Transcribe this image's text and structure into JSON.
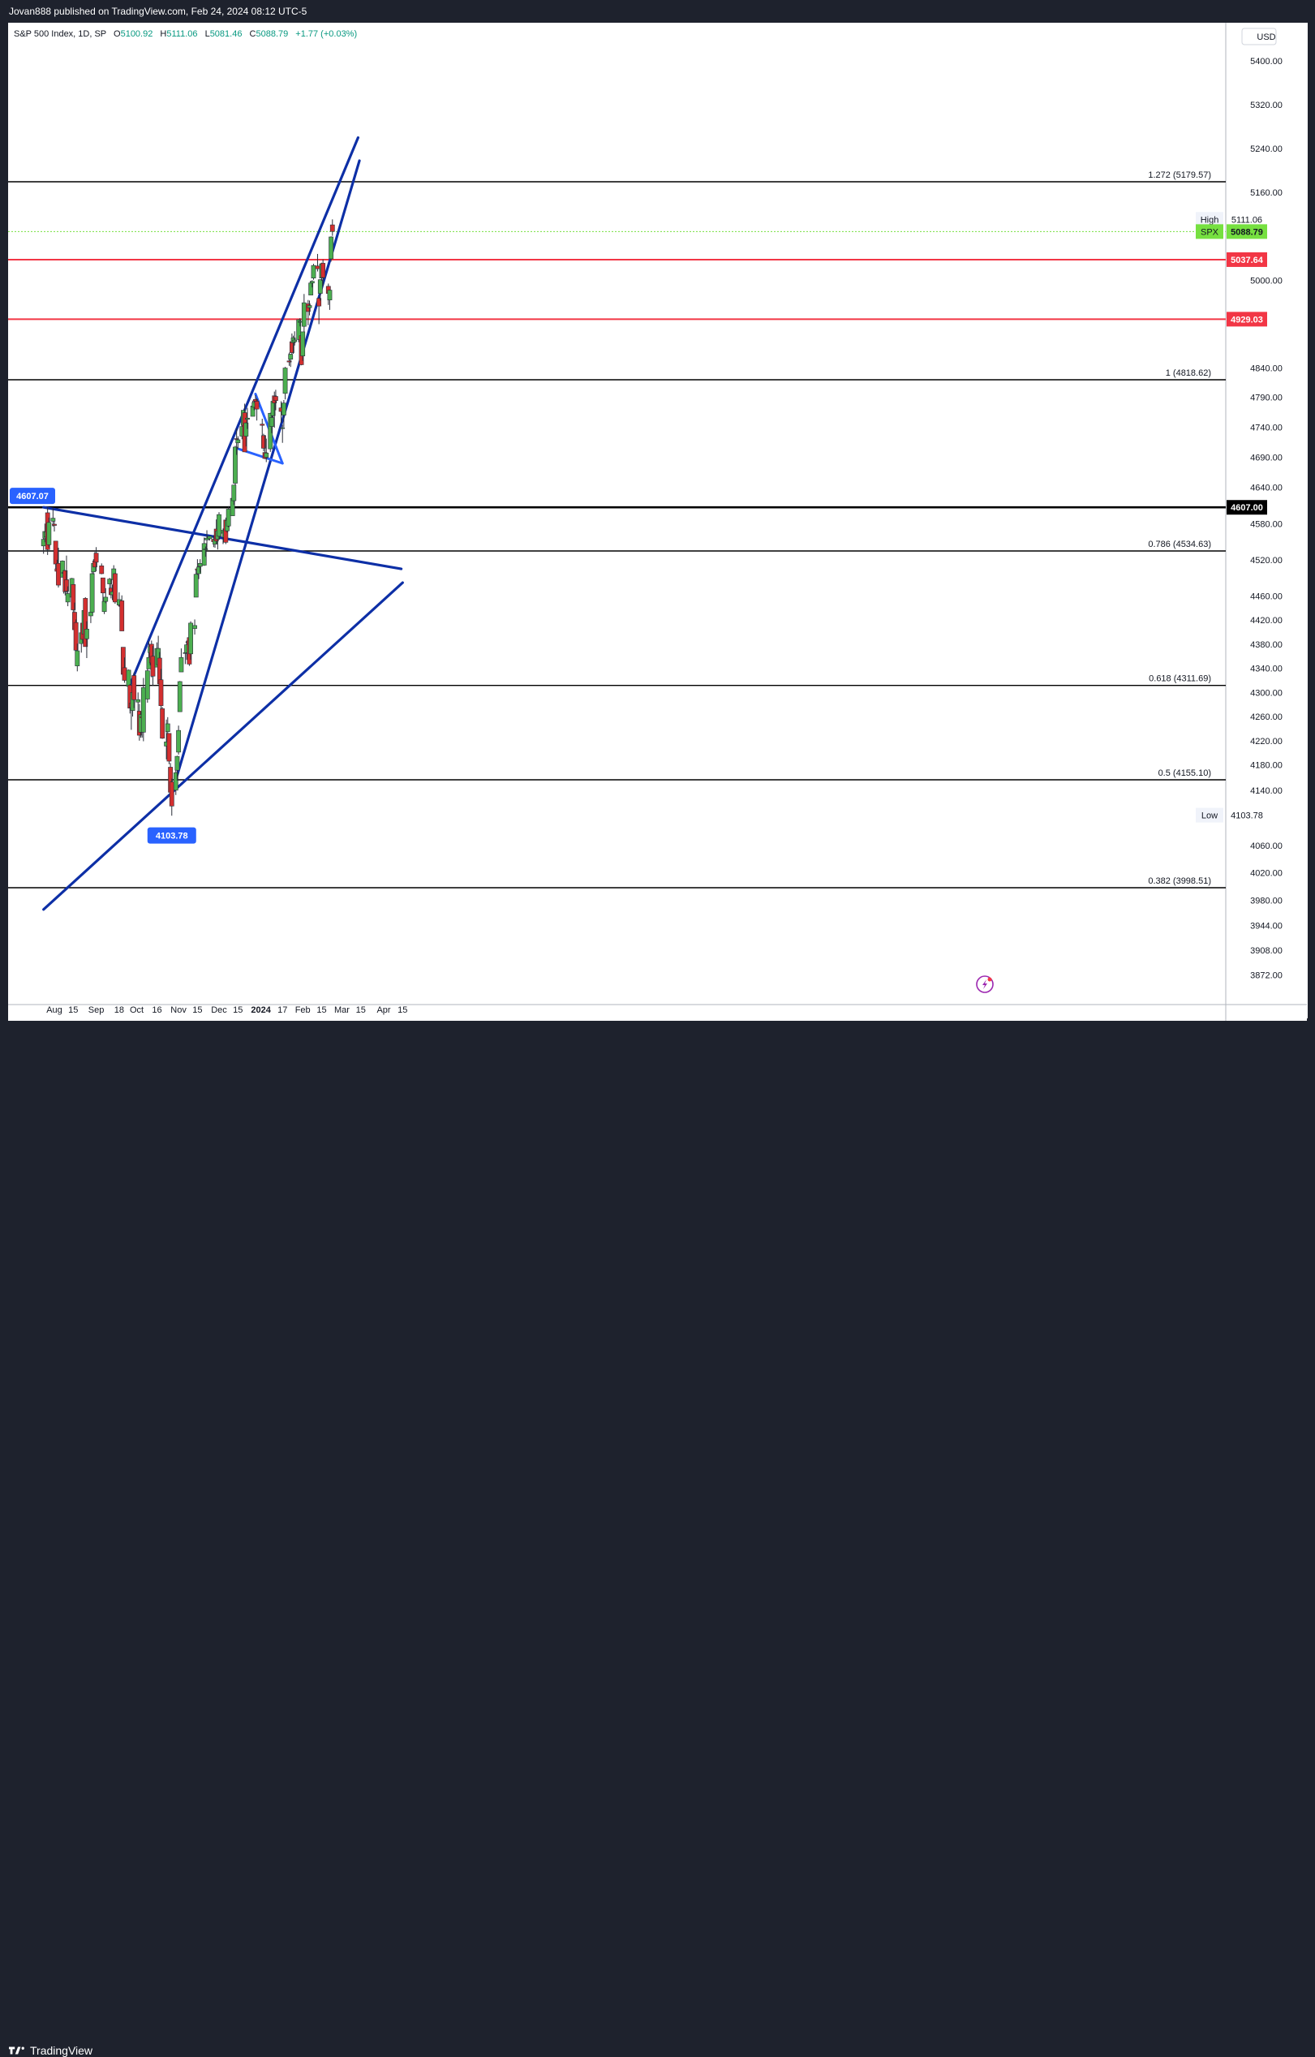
{
  "header": {
    "published_by": "Jovan888 published on TradingView.com, Feb 24, 2024 08:12 UTC-5"
  },
  "legend": {
    "symbol": "S&P 500 Index, 1D, SP",
    "open_label": "O",
    "open": "5100.92",
    "high_label": "H",
    "high": "5111.06",
    "low_label": "L",
    "low": "5081.46",
    "close_label": "C",
    "close": "5088.79",
    "change": "+1.77 (+0.03%)"
  },
  "footer": {
    "brand": "TradingView"
  },
  "colors": {
    "up": "#4caf50",
    "down": "#d32f2f",
    "trend": "#0d2fa6",
    "flag": "#2962ff",
    "red_level": "#f23645",
    "badge_blue": "#2962ff",
    "price_green": "#76e040"
  },
  "chart_data": {
    "type": "candlestick",
    "currency": "USD",
    "ylim": [
      3840,
      5460
    ],
    "y_ticks": [
      "5400.00",
      "5320.00",
      "5240.00",
      "5160.00",
      "5111.06",
      "5088.79",
      "5037.64",
      "5000.00",
      "4929.03",
      "4840.00",
      "4790.00",
      "4740.00",
      "4690.00",
      "4640.00",
      "4607.00",
      "4580.00",
      "4520.00",
      "4460.00",
      "4420.00",
      "4380.00",
      "4340.00",
      "4300.00",
      "4260.00",
      "4220.00",
      "4180.00",
      "4140.00",
      "4103.78",
      "4060.00",
      "4020.00",
      "3980.00",
      "3944.00",
      "3908.00",
      "3872.00"
    ],
    "x_ticks": [
      "Aug",
      "15",
      "Sep",
      "18",
      "Oct",
      "16",
      "Nov",
      "15",
      "Dec",
      "15",
      "2024",
      "17",
      "Feb",
      "15",
      "Mar",
      "15",
      "Apr",
      "15"
    ],
    "fib_levels": [
      {
        "label": "1.272 (5179.57)",
        "value": 5179.57
      },
      {
        "label": "1 (4818.62)",
        "value": 4818.62
      },
      {
        "label": "0.786 (4534.63)",
        "value": 4534.63
      },
      {
        "label": "0.618 (4311.69)",
        "value": 4311.69
      },
      {
        "label": "0.5 (4155.10)",
        "value": 4155.1
      },
      {
        "label": "0.382 (3998.51)",
        "value": 3998.51
      }
    ],
    "red_levels": [
      {
        "label": "5037.64",
        "value": 5037.64
      },
      {
        "label": "4929.03",
        "value": 4929.03
      }
    ],
    "support_level": {
      "label": "4607.00",
      "value": 4607.0
    },
    "high_marker": {
      "label": "High",
      "value_label": "5111.06",
      "value": 5111.06
    },
    "low_marker": {
      "label": "Low",
      "value_label": "4103.78",
      "value": 4103.78
    },
    "last_price": {
      "label": "SPX",
      "value_label": "5088.79",
      "value": 5088.79
    },
    "swing_badges": [
      {
        "label": "4607.07",
        "value": 4607.07,
        "date": "2023-07-31"
      },
      {
        "label": "4103.78",
        "value": 4103.78,
        "date": "2023-10-27"
      }
    ],
    "candles": [
      [
        "2023-07-24",
        4543,
        4563,
        4530,
        4554
      ],
      [
        "2023-07-25",
        4556,
        4580,
        4549,
        4567
      ],
      [
        "2023-07-26",
        4558,
        4582,
        4547,
        4566
      ],
      [
        "2023-07-27",
        4598,
        4607,
        4528,
        4537
      ],
      [
        "2023-07-28",
        4545,
        4590,
        4540,
        4582
      ],
      [
        "2023-07-31",
        4584,
        4607,
        4575,
        4589
      ],
      [
        "2023-08-01",
        4579,
        4584,
        4567,
        4577
      ],
      [
        "2023-08-02",
        4551,
        4551,
        4505,
        4513
      ],
      [
        "2023-08-03",
        4505,
        4520,
        4490,
        4501
      ],
      [
        "2023-08-04",
        4514,
        4540,
        4474,
        4478
      ],
      [
        "2023-08-07",
        4491,
        4519,
        4491,
        4518
      ],
      [
        "2023-08-08",
        4498,
        4503,
        4464,
        4499
      ],
      [
        "2023-08-09",
        4502,
        4503,
        4461,
        4467
      ],
      [
        "2023-08-10",
        4487,
        4527,
        4457,
        4468
      ],
      [
        "2023-08-11",
        4450,
        4476,
        4443,
        4464
      ],
      [
        "2023-08-14",
        4458,
        4490,
        4454,
        4489
      ],
      [
        "2023-08-15",
        4479,
        4479,
        4432,
        4437
      ],
      [
        "2023-08-16",
        4433,
        4449,
        4403,
        4404
      ],
      [
        "2023-08-17",
        4416,
        4421,
        4364,
        4370
      ],
      [
        "2023-08-18",
        4344,
        4381,
        4335,
        4369
      ],
      [
        "2023-08-21",
        4381,
        4400,
        4366,
        4399
      ],
      [
        "2023-08-22",
        4415,
        4418,
        4382,
        4388
      ],
      [
        "2023-08-23",
        4397,
        4443,
        4397,
        4436
      ],
      [
        "2023-08-24",
        4456,
        4458,
        4376,
        4376
      ],
      [
        "2023-08-25",
        4389,
        4418,
        4357,
        4405
      ],
      [
        "2023-08-28",
        4427,
        4439,
        4415,
        4433
      ],
      [
        "2023-08-29",
        4433,
        4500,
        4432,
        4497
      ],
      [
        "2023-08-30",
        4500,
        4521,
        4496,
        4514
      ],
      [
        "2023-08-31",
        4518,
        4533,
        4508,
        4508
      ],
      [
        "2023-09-01",
        4531,
        4541,
        4501,
        4516
      ],
      [
        "2023-09-05",
        4510,
        4514,
        4496,
        4497
      ],
      [
        "2023-09-06",
        4490,
        4490,
        4442,
        4465
      ],
      [
        "2023-09-07",
        4434,
        4457,
        4430,
        4451
      ],
      [
        "2023-09-08",
        4451,
        4473,
        4448,
        4458
      ],
      [
        "2023-09-11",
        4480,
        4490,
        4467,
        4488
      ],
      [
        "2023-09-12",
        4473,
        4488,
        4456,
        4462
      ],
      [
        "2023-09-13",
        4462,
        4479,
        4453,
        4467
      ],
      [
        "2023-09-14",
        4487,
        4511,
        4478,
        4505
      ],
      [
        "2023-09-15",
        4497,
        4498,
        4447,
        4450
      ],
      [
        "2023-09-18",
        4445,
        4466,
        4442,
        4454
      ],
      [
        "2023-09-19",
        4445,
        4449,
        4417,
        4444
      ],
      [
        "2023-09-20",
        4452,
        4461,
        4402,
        4402
      ],
      [
        "2023-09-21",
        4375,
        4375,
        4329,
        4330
      ],
      [
        "2023-09-22",
        4341,
        4358,
        4316,
        4320
      ],
      [
        "2023-09-25",
        4310,
        4338,
        4302,
        4337
      ],
      [
        "2023-09-26",
        4312,
        4314,
        4265,
        4274
      ],
      [
        "2023-09-27",
        4282,
        4292,
        4238,
        4275
      ],
      [
        "2023-09-28",
        4270,
        4317,
        4260,
        4300
      ],
      [
        "2023-09-29",
        4328,
        4333,
        4274,
        4288
      ],
      [
        "2023-10-02",
        4284,
        4300,
        4260,
        4288
      ],
      [
        "2023-10-03",
        4269,
        4281,
        4220,
        4229
      ],
      [
        "2023-10-04",
        4234,
        4268,
        4225,
        4263
      ],
      [
        "2023-10-05",
        4260,
        4267,
        4225,
        4258
      ],
      [
        "2023-10-06",
        4234,
        4324,
        4219,
        4308
      ],
      [
        "2023-10-09",
        4289,
        4340,
        4283,
        4336
      ],
      [
        "2023-10-10",
        4339,
        4385,
        4339,
        4358
      ],
      [
        "2023-10-11",
        4366,
        4378,
        4345,
        4376
      ],
      [
        "2023-10-12",
        4380,
        4386,
        4325,
        4349
      ],
      [
        "2023-10-13",
        4360,
        4377,
        4311,
        4327
      ],
      [
        "2023-10-16",
        4342,
        4383,
        4342,
        4373
      ],
      [
        "2023-10-17",
        4346,
        4394,
        4338,
        4373
      ],
      [
        "2023-10-18",
        4357,
        4367,
        4307,
        4314
      ],
      [
        "2023-10-19",
        4321,
        4339,
        4269,
        4278
      ],
      [
        "2023-10-20",
        4273,
        4276,
        4223,
        4224
      ],
      [
        "2023-10-23",
        4211,
        4255,
        4189,
        4218
      ],
      [
        "2023-10-24",
        4235,
        4259,
        4220,
        4248
      ],
      [
        "2023-10-25",
        4232,
        4232,
        4181,
        4186
      ],
      [
        "2023-10-26",
        4176,
        4183,
        4127,
        4137
      ],
      [
        "2023-10-27",
        4152,
        4157,
        4103,
        4117
      ],
      [
        "2023-10-30",
        4140,
        4177,
        4133,
        4167
      ],
      [
        "2023-10-31",
        4171,
        4195,
        4154,
        4194
      ],
      [
        "2023-11-01",
        4201,
        4245,
        4197,
        4237
      ],
      [
        "2023-11-02",
        4268,
        4319,
        4268,
        4318
      ],
      [
        "2023-11-03",
        4334,
        4373,
        4334,
        4358
      ],
      [
        "2023-11-06",
        4365,
        4372,
        4347,
        4366
      ],
      [
        "2023-11-07",
        4366,
        4386,
        4354,
        4379
      ],
      [
        "2023-11-08",
        4384,
        4391,
        4364,
        4383
      ],
      [
        "2023-11-09",
        4391,
        4393,
        4344,
        4347
      ],
      [
        "2023-11-10",
        4364,
        4418,
        4354,
        4415
      ],
      [
        "2023-11-13",
        4406,
        4421,
        4396,
        4411
      ],
      [
        "2023-11-14",
        4458,
        4504,
        4458,
        4496
      ],
      [
        "2023-11-15",
        4505,
        4521,
        4495,
        4503
      ],
      [
        "2023-11-16",
        4497,
        4511,
        4488,
        4508
      ],
      [
        "2023-11-17",
        4509,
        4521,
        4499,
        4514
      ],
      [
        "2023-11-20",
        4511,
        4557,
        4510,
        4547
      ],
      [
        "2023-11-21",
        4538,
        4542,
        4525,
        4538
      ],
      [
        "2023-11-22",
        4553,
        4569,
        4537,
        4556
      ],
      [
        "2023-11-24",
        4555,
        4560,
        4552,
        4559
      ],
      [
        "2023-11-27",
        4554,
        4561,
        4541,
        4550
      ],
      [
        "2023-11-28",
        4546,
        4568,
        4540,
        4554
      ],
      [
        "2023-11-29",
        4571,
        4587,
        4546,
        4551
      ],
      [
        "2023-11-30",
        4554,
        4569,
        4537,
        4568
      ],
      [
        "2023-12-01",
        4559,
        4599,
        4554,
        4595
      ],
      [
        "2023-12-04",
        4564,
        4572,
        4546,
        4569
      ],
      [
        "2023-12-05",
        4557,
        4579,
        4551,
        4567
      ],
      [
        "2023-12-06",
        4586,
        4590,
        4546,
        4549
      ],
      [
        "2023-12-07",
        4568,
        4590,
        4565,
        4585
      ],
      [
        "2023-12-08",
        4576,
        4609,
        4574,
        4604
      ],
      [
        "2023-12-11",
        4593,
        4623,
        4593,
        4622
      ],
      [
        "2023-12-12",
        4618,
        4644,
        4611,
        4644
      ],
      [
        "2023-12-13",
        4647,
        4709,
        4644,
        4707
      ],
      [
        "2023-12-14",
        4721,
        4738,
        4694,
        4720
      ],
      [
        "2023-12-15",
        4714,
        4725,
        4704,
        4719
      ],
      [
        "2023-12-18",
        4725,
        4749,
        4720,
        4741
      ],
      [
        "2023-12-19",
        4743,
        4768,
        4743,
        4768
      ],
      [
        "2023-12-20",
        4764,
        4779,
        4699,
        4699
      ],
      [
        "2023-12-21",
        4725,
        4748,
        4708,
        4747
      ],
      [
        "2023-12-22",
        4753,
        4772,
        4737,
        4755
      ],
      [
        "2023-12-26",
        4758,
        4784,
        4758,
        4775
      ],
      [
        "2023-12-27",
        4773,
        4785,
        4768,
        4781
      ],
      [
        "2023-12-28",
        4786,
        4793,
        4780,
        4783
      ],
      [
        "2023-12-29",
        4783,
        4788,
        4751,
        4770
      ],
      [
        "2024-01-02",
        4745,
        4754,
        4722,
        4743
      ],
      [
        "2024-01-03",
        4726,
        4729,
        4700,
        4705
      ],
      [
        "2024-01-04",
        4698,
        4727,
        4687,
        4688
      ],
      [
        "2024-01-05",
        4690,
        4721,
        4682,
        4697
      ],
      [
        "2024-01-08",
        4704,
        4764,
        4699,
        4763
      ],
      [
        "2024-01-09",
        4741,
        4765,
        4730,
        4756
      ],
      [
        "2024-01-10",
        4759,
        4791,
        4756,
        4783
      ],
      [
        "2024-01-11",
        4792,
        4799,
        4739,
        4780
      ],
      [
        "2024-01-12",
        4791,
        4802,
        4768,
        4784
      ],
      [
        "2024-01-16",
        4772,
        4783,
        4747,
        4766
      ],
      [
        "2024-01-17",
        4739,
        4744,
        4714,
        4739
      ],
      [
        "2024-01-18",
        4760,
        4785,
        4740,
        4780
      ],
      [
        "2024-01-19",
        4796,
        4842,
        4786,
        4840
      ],
      [
        "2024-01-22",
        4853,
        4868,
        4844,
        4851
      ],
      [
        "2024-01-23",
        4856,
        4866,
        4842,
        4865
      ],
      [
        "2024-01-24",
        4888,
        4903,
        4865,
        4868
      ],
      [
        "2024-01-25",
        4886,
        4899,
        4866,
        4895
      ],
      [
        "2024-01-26",
        4888,
        4907,
        4881,
        4891
      ],
      [
        "2024-01-29",
        4892,
        4929,
        4887,
        4928
      ],
      [
        "2024-01-30",
        4925,
        4931,
        4916,
        4925
      ],
      [
        "2024-01-31",
        4899,
        4906,
        4845,
        4846
      ],
      [
        "2024-02-01",
        4862,
        4906,
        4853,
        4906
      ],
      [
        "2024-02-02",
        4916,
        4975,
        4906,
        4959
      ],
      [
        "2024-02-05",
        4957,
        4964,
        4918,
        4943
      ],
      [
        "2024-02-06",
        4950,
        4963,
        4936,
        4954
      ],
      [
        "2024-02-07",
        4973,
        4999,
        4973,
        4995
      ],
      [
        "2024-02-08",
        4995,
        5000,
        4987,
        4998
      ],
      [
        "2024-02-09",
        5004,
        5030,
        5001,
        5027
      ],
      [
        "2024-02-12",
        5026,
        5048,
        5016,
        5021
      ],
      [
        "2024-02-13",
        4967,
        4969,
        4920,
        4953
      ],
      [
        "2024-02-14",
        4976,
        5002,
        4963,
        5001
      ],
      [
        "2024-02-15",
        5004,
        5032,
        4999,
        5030
      ],
      [
        "2024-02-16",
        5031,
        5038,
        4990,
        5005
      ],
      [
        "2024-02-20",
        4989,
        4994,
        4955,
        4976
      ],
      [
        "2024-02-21",
        4964,
        4983,
        4946,
        4982
      ],
      [
        "2024-02-22",
        5039,
        5080,
        5034,
        5079
      ],
      [
        "2024-02-23",
        5101,
        5111,
        5081,
        5089
      ]
    ],
    "trend_lines": [
      {
        "name": "channel-upper",
        "from": [
          "2023-09-26",
          4312
        ],
        "to": [
          "2024-03-13",
          5260
        ]
      },
      {
        "name": "channel-lower",
        "from": [
          "2023-10-30",
          4155
        ],
        "to": [
          "2024-03-14",
          5218
        ]
      },
      {
        "name": "resistance-descending",
        "from": [
          "2023-07-24",
          4607
        ],
        "to": [
          "2024-04-14",
          4505
        ]
      },
      {
        "name": "support-ascending",
        "from": [
          "2023-07-24",
          3967
        ],
        "to": [
          "2024-04-15",
          4482
        ]
      }
    ],
    "flag_lines": [
      {
        "name": "flag-upper",
        "from": [
          "2023-12-28",
          4795
        ],
        "to": [
          "2024-01-17",
          4680
        ]
      },
      {
        "name": "flag-lower",
        "from": [
          "2023-12-14",
          4705
        ],
        "to": [
          "2024-01-17",
          4680
        ]
      }
    ]
  }
}
